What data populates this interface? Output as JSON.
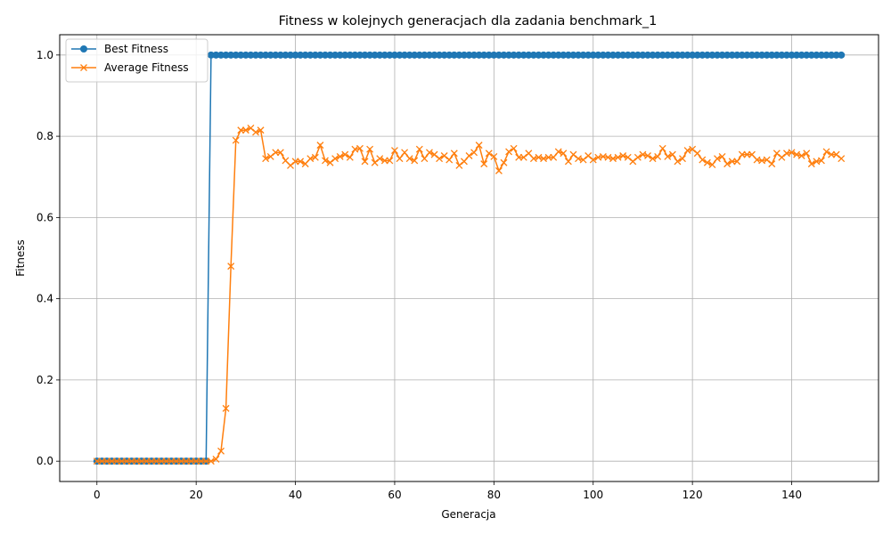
{
  "chart_data": {
    "type": "line",
    "title": "Fitness w kolejnych generacjach dla zadania benchmark_1",
    "xlabel": "Generacja",
    "ylabel": "Fitness",
    "xlim": [
      -7.5,
      157.5
    ],
    "ylim": [
      -0.05,
      1.05
    ],
    "xticks": [
      0,
      20,
      40,
      60,
      80,
      100,
      120,
      140
    ],
    "yticks": [
      0.0,
      0.2,
      0.4,
      0.6,
      0.8,
      1.0
    ],
    "ytick_labels": [
      "0.0",
      "0.2",
      "0.4",
      "0.6",
      "0.8",
      "1.0"
    ],
    "grid": true,
    "legend_position": "top-left",
    "series": [
      {
        "name": "Best Fitness",
        "color": "#1f77b4",
        "marker": "circle",
        "values": [
          0,
          0,
          0,
          0,
          0,
          0,
          0,
          0,
          0,
          0,
          0,
          0,
          0,
          0,
          0,
          0,
          0,
          0,
          0,
          0,
          0,
          0,
          0,
          1,
          1,
          1,
          1,
          1,
          1,
          1,
          1,
          1,
          1,
          1,
          1,
          1,
          1,
          1,
          1,
          1,
          1,
          1,
          1,
          1,
          1,
          1,
          1,
          1,
          1,
          1,
          1,
          1,
          1,
          1,
          1,
          1,
          1,
          1,
          1,
          1,
          1,
          1,
          1,
          1,
          1,
          1,
          1,
          1,
          1,
          1,
          1,
          1,
          1,
          1,
          1,
          1,
          1,
          1,
          1,
          1,
          1,
          1,
          1,
          1,
          1,
          1,
          1,
          1,
          1,
          1,
          1,
          1,
          1,
          1,
          1,
          1,
          1,
          1,
          1,
          1,
          1,
          1,
          1,
          1,
          1,
          1,
          1,
          1,
          1,
          1,
          1,
          1,
          1,
          1,
          1,
          1,
          1,
          1,
          1,
          1,
          1,
          1,
          1,
          1,
          1,
          1,
          1,
          1,
          1,
          1,
          1,
          1,
          1,
          1,
          1,
          1,
          1,
          1,
          1,
          1,
          1,
          1,
          1,
          1,
          1,
          1,
          1,
          1,
          1,
          1,
          1
        ]
      },
      {
        "name": "Average Fitness",
        "color": "#ff7f0e",
        "marker": "x",
        "values": [
          0,
          0,
          0,
          0,
          0,
          0,
          0,
          0,
          0,
          0,
          0,
          0,
          0,
          0,
          0,
          0,
          0,
          0,
          0,
          0,
          0,
          0,
          0,
          0,
          0.005,
          0.025,
          0.13,
          0.48,
          0.79,
          0.815,
          0.815,
          0.82,
          0.81,
          0.815,
          0.745,
          0.75,
          0.76,
          0.76,
          0.74,
          0.728,
          0.738,
          0.738,
          0.732,
          0.745,
          0.748,
          0.778,
          0.74,
          0.735,
          0.745,
          0.75,
          0.755,
          0.748,
          0.768,
          0.77,
          0.738,
          0.768,
          0.735,
          0.745,
          0.74,
          0.74,
          0.765,
          0.745,
          0.76,
          0.745,
          0.74,
          0.768,
          0.745,
          0.76,
          0.755,
          0.745,
          0.752,
          0.742,
          0.758,
          0.728,
          0.738,
          0.752,
          0.76,
          0.778,
          0.732,
          0.758,
          0.75,
          0.715,
          0.735,
          0.762,
          0.77,
          0.748,
          0.748,
          0.758,
          0.745,
          0.748,
          0.745,
          0.748,
          0.748,
          0.762,
          0.758,
          0.738,
          0.755,
          0.745,
          0.742,
          0.752,
          0.742,
          0.748,
          0.75,
          0.748,
          0.745,
          0.748,
          0.752,
          0.748,
          0.738,
          0.748,
          0.755,
          0.752,
          0.745,
          0.75,
          0.77,
          0.75,
          0.755,
          0.738,
          0.745,
          0.765,
          0.768,
          0.758,
          0.742,
          0.735,
          0.73,
          0.745,
          0.75,
          0.732,
          0.738,
          0.738,
          0.755,
          0.755,
          0.755,
          0.742,
          0.74,
          0.742,
          0.732,
          0.758,
          0.748,
          0.758,
          0.76,
          0.755,
          0.752,
          0.758,
          0.732,
          0.738,
          0.74,
          0.762,
          0.755,
          0.755,
          0.745
        ]
      }
    ]
  }
}
